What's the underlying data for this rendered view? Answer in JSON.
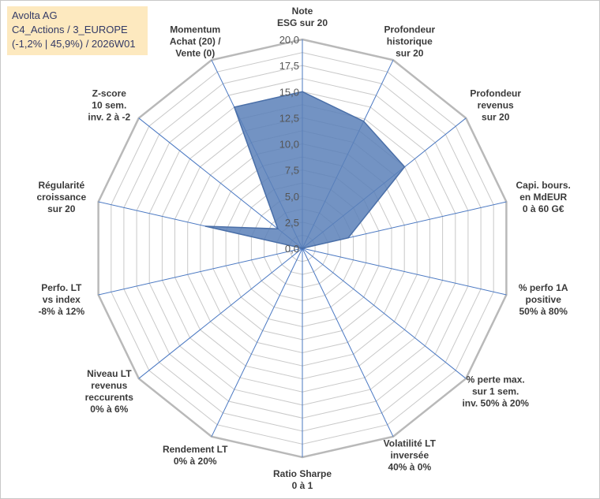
{
  "header": {
    "lines": [
      "Avolta AG",
      "C4_Actions / 3_EUROPE",
      "(-1,2% | 45,9%) / 2026W01"
    ]
  },
  "colors": {
    "fill": "#5b80b8",
    "stroke": "#4a6fa8",
    "grid": "#c9c9c9",
    "spoke": "#4a78c2"
  },
  "chart_data": {
    "type": "radar",
    "rmin": 0,
    "rmax": 20,
    "ticks": [
      "0,0",
      "2,5",
      "5,0",
      "7,5",
      "10,0",
      "12,5",
      "15,0",
      "17,5",
      "20,0"
    ],
    "axes": [
      {
        "label": [
          "Note",
          "ESG sur 20"
        ],
        "value": 15
      },
      {
        "label": [
          "Profondeur",
          "historique",
          "sur 20"
        ],
        "value": 13.5
      },
      {
        "label": [
          "Profondeur",
          "revenus",
          "sur 20"
        ],
        "value": 12.5
      },
      {
        "label": [
          "Capi. bours.",
          "en MdEUR",
          "0 à 60 G€"
        ],
        "value": 4.5
      },
      {
        "label": [
          "% perfo 1A",
          "positive",
          "50% à 80%"
        ],
        "value": 0
      },
      {
        "label": [
          "% perte max.",
          "sur 1 sem.",
          "inv. 50% à 20%"
        ],
        "value": 0
      },
      {
        "label": [
          "Volatilité LT",
          "inversée",
          "40% à 0%"
        ],
        "value": 0
      },
      {
        "label": [
          "Ratio Sharpe",
          "0 à 1"
        ],
        "value": 0
      },
      {
        "label": [
          "Rendement LT",
          "0% à 20%"
        ],
        "value": 0
      },
      {
        "label": [
          "Niveau LT",
          "revenus",
          "reccurents",
          "0% à 6%"
        ],
        "value": 0
      },
      {
        "label": [
          "Perfo. LT",
          "vs index",
          "-8% à 12%"
        ],
        "value": 0
      },
      {
        "label": [
          "Régularité",
          "croissance",
          "sur 20"
        ],
        "value": 9.5
      },
      {
        "label": [
          "Z-score",
          "10 sem.",
          "inv. 2 à -2"
        ],
        "value": 3
      },
      {
        "label": [
          "Momentum",
          "Achat (20) /",
          "Vente (0)"
        ],
        "value": 15
      }
    ]
  }
}
